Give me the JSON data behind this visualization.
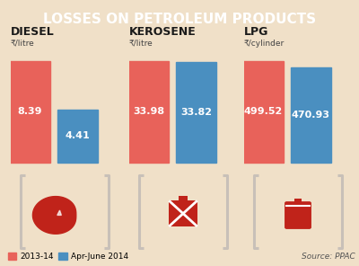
{
  "title": "LOSSES ON PETROLEUM PRODUCTS",
  "title_bg": "#c0392b",
  "title_color": "#ffffff",
  "bg_color": "#f0e0c8",
  "categories": [
    "DIESEL",
    "KEROSENE",
    "LPG"
  ],
  "subtitles": [
    "₹/litre",
    "₹/litre",
    "₹/cylinder"
  ],
  "values_2013": [
    8.39,
    33.98,
    499.52
  ],
  "values_2014": [
    4.41,
    33.82,
    470.93
  ],
  "labels_2013": [
    "8.39",
    "33.98",
    "499.52"
  ],
  "labels_2014": [
    "4.41",
    "33.82",
    "470.93"
  ],
  "color_2013": "#e8625a",
  "color_2014": "#4a8fc0",
  "icon_color": "#c0231a",
  "bracket_color": "#c8c0b8",
  "legend_2013": "2013-14",
  "legend_2014": "Apr-June 2014",
  "source": "Source: PPAC"
}
